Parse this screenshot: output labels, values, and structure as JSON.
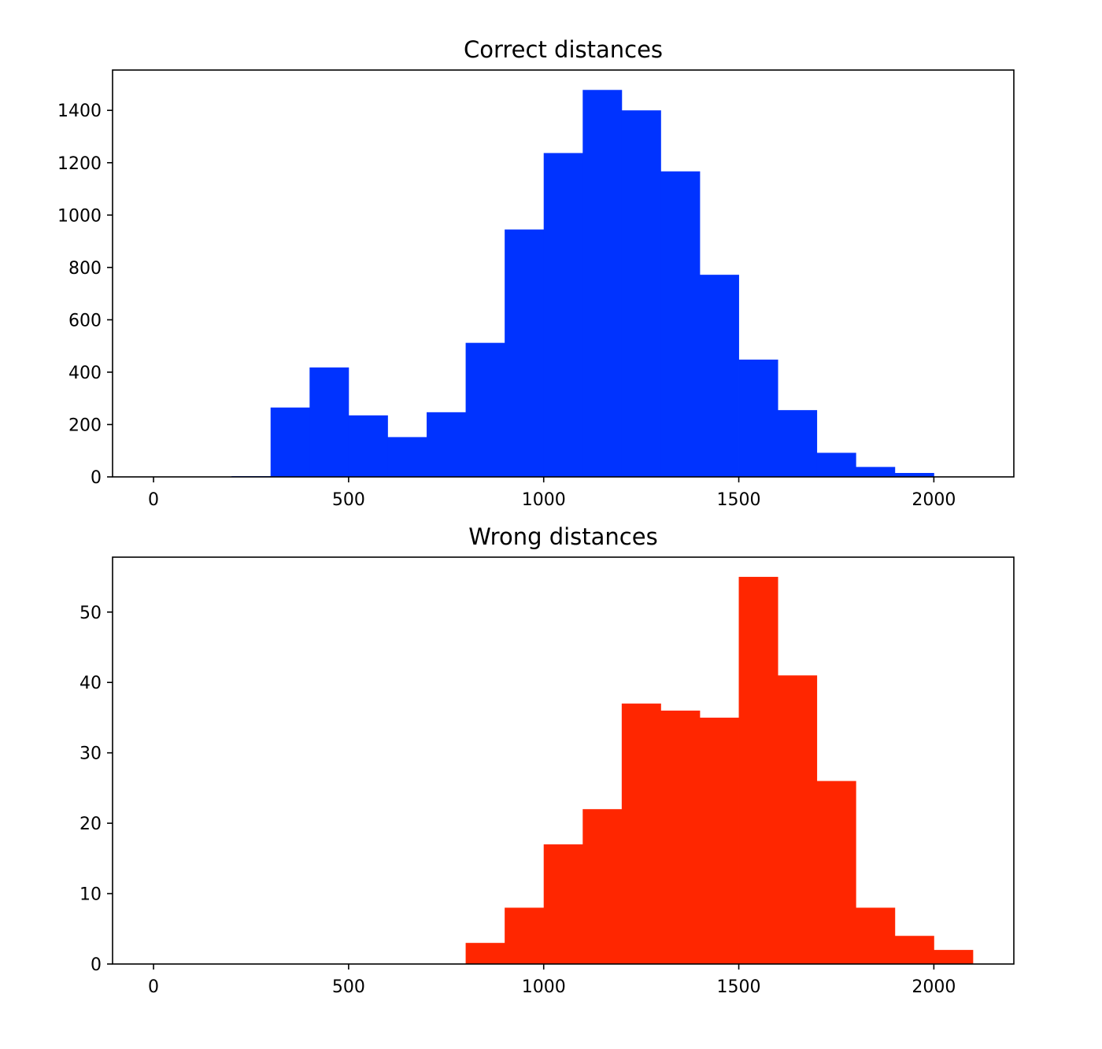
{
  "chart_data": [
    {
      "type": "bar",
      "title": "Correct distances",
      "xlabel": "",
      "ylabel": "",
      "xlim": [
        -105,
        2205
      ],
      "ylim": [
        0,
        1554
      ],
      "xticks": [
        0,
        500,
        1000,
        1500,
        2000
      ],
      "yticks": [
        0,
        200,
        400,
        600,
        800,
        1000,
        1200,
        1400
      ],
      "bin_edges": [
        0,
        100,
        200,
        300,
        400,
        500,
        600,
        700,
        800,
        900,
        1000,
        1100,
        1200,
        1300,
        1400,
        1500,
        1600,
        1700,
        1800,
        1900,
        2000
      ],
      "values": [
        0,
        0,
        3,
        265,
        418,
        235,
        152,
        247,
        512,
        945,
        1237,
        1478,
        1400,
        1167,
        772,
        448,
        255,
        92,
        38,
        15
      ],
      "color": "#0033ff",
      "grid": false,
      "legend": "none"
    },
    {
      "type": "bar",
      "title": "Wrong distances",
      "xlabel": "",
      "ylabel": "",
      "xlim": [
        -105,
        2205
      ],
      "ylim": [
        0,
        57.8
      ],
      "xticks": [
        0,
        500,
        1000,
        1500,
        2000
      ],
      "yticks": [
        0,
        10,
        20,
        30,
        40,
        50
      ],
      "bin_edges": [
        0,
        100,
        200,
        300,
        400,
        500,
        600,
        700,
        800,
        900,
        1000,
        1100,
        1200,
        1300,
        1400,
        1500,
        1600,
        1700,
        1800,
        1900,
        2000,
        2100
      ],
      "values": [
        0,
        0,
        0,
        0,
        0,
        0,
        0,
        0,
        3,
        8,
        17,
        22,
        37,
        36,
        35,
        55,
        41,
        26,
        8,
        4,
        2
      ],
      "color": "#ff2600",
      "grid": false,
      "legend": "none"
    }
  ]
}
